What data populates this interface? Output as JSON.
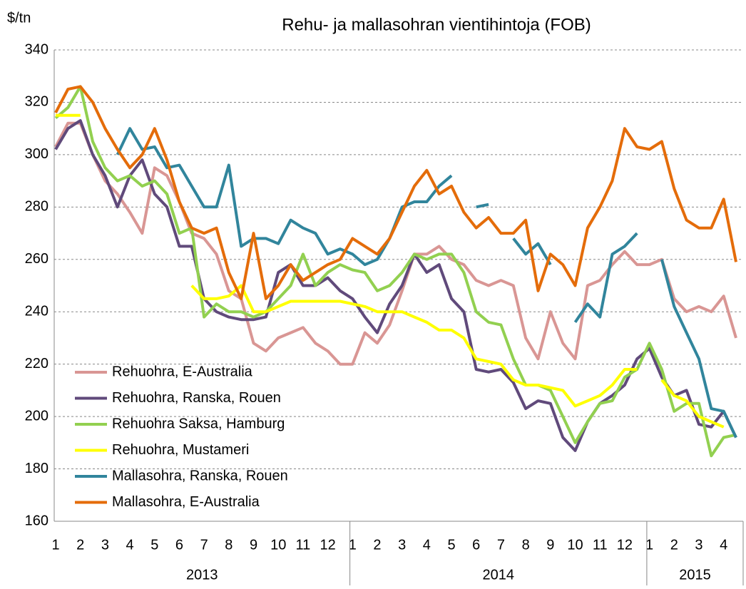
{
  "chart_data": {
    "type": "line",
    "title": "Rehu- ja mallasohran vientihintoja (FOB)",
    "y_axis_label": "$/tn",
    "categories": [
      "1",
      null,
      "2",
      null,
      "3",
      null,
      "4",
      null,
      "5",
      null,
      "6",
      null,
      "7",
      null,
      "8",
      null,
      "9",
      null,
      "10",
      null,
      "11",
      null,
      "12",
      null,
      "1",
      null,
      "2",
      null,
      "3",
      null,
      "4",
      null,
      "5",
      null,
      "6",
      null,
      "7",
      null,
      "8",
      null,
      "9",
      null,
      "10",
      null,
      "11",
      null,
      "12",
      null,
      "1",
      null,
      "2",
      null,
      "3",
      null,
      "4",
      null
    ],
    "years": [
      "2013",
      "2014",
      "2015"
    ],
    "ylim": [
      160,
      340
    ],
    "yticks": [
      160,
      180,
      200,
      220,
      240,
      260,
      280,
      300,
      320,
      340
    ],
    "grid": true,
    "series": [
      {
        "name": "Rehuohra, E-Australia",
        "color": "#d99694",
        "values": [
          303,
          312,
          312,
          300,
          290,
          285,
          278,
          270,
          295,
          292,
          282,
          270,
          268,
          262,
          248,
          245,
          228,
          225,
          230,
          232,
          234,
          228,
          225,
          220,
          220,
          232,
          228,
          235,
          248,
          262,
          262,
          265,
          260,
          258,
          252,
          250,
          252,
          250,
          230,
          222,
          240,
          228,
          222,
          250,
          252,
          258,
          263,
          258,
          258,
          260,
          245,
          240,
          242,
          240,
          246,
          230
        ]
      },
      {
        "name": "Rehuohra, Ranska, Rouen",
        "color": "#604a7b",
        "values": [
          302,
          310,
          313,
          300,
          292,
          280,
          292,
          298,
          285,
          280,
          265,
          265,
          245,
          240,
          238,
          237,
          237,
          238,
          255,
          258,
          250,
          250,
          253,
          248,
          245,
          238,
          232,
          243,
          250,
          262,
          255,
          258,
          245,
          240,
          218,
          217,
          218,
          213,
          203,
          206,
          205,
          192,
          187,
          198,
          205,
          208,
          212,
          222,
          226,
          215,
          208,
          210,
          197,
          196,
          202,
          192
        ]
      },
      {
        "name": "Rehuohra Saksa, Hamburg",
        "color": "#92d050",
        "values": [
          314,
          318,
          326,
          305,
          295,
          290,
          292,
          288,
          290,
          285,
          270,
          272,
          238,
          243,
          240,
          240,
          238,
          240,
          245,
          250,
          262,
          250,
          255,
          258,
          256,
          255,
          248,
          250,
          255,
          262,
          260,
          262,
          262,
          255,
          240,
          236,
          235,
          222,
          212,
          212,
          210,
          200,
          190,
          198,
          205,
          206,
          215,
          218,
          228,
          218,
          202,
          205,
          205,
          185,
          192,
          193
        ]
      },
      {
        "name": "Rehuohra, Mustameri",
        "color": "#ffff00",
        "values": [
          315,
          315,
          315,
          null,
          null,
          null,
          null,
          null,
          null,
          null,
          null,
          250,
          245,
          245,
          246,
          250,
          240,
          240,
          242,
          244,
          244,
          244,
          244,
          244,
          243,
          242,
          240,
          240,
          240,
          238,
          236,
          233,
          233,
          230,
          222,
          221,
          220,
          214,
          212,
          212,
          211,
          210,
          204,
          206,
          208,
          212,
          218,
          218,
          null,
          214,
          208,
          206,
          200,
          198,
          196,
          null
        ]
      },
      {
        "name": "Mallasohra, Ranska, Rouen",
        "color": "#31859c",
        "values": [
          null,
          null,
          null,
          null,
          null,
          300,
          310,
          302,
          303,
          295,
          296,
          288,
          280,
          280,
          296,
          265,
          268,
          268,
          266,
          275,
          272,
          270,
          262,
          264,
          262,
          258,
          260,
          268,
          280,
          282,
          282,
          288,
          292,
          null,
          280,
          281,
          null,
          268,
          262,
          266,
          258,
          null,
          236,
          243,
          238,
          262,
          265,
          270,
          null,
          260,
          242,
          232,
          222,
          203,
          202,
          192
        ]
      },
      {
        "name": "Mallasohra, E-Australia",
        "color": "#e46c0a",
        "values": [
          316,
          325,
          326,
          320,
          310,
          302,
          295,
          300,
          310,
          298,
          282,
          272,
          270,
          272,
          255,
          245,
          270,
          245,
          250,
          258,
          252,
          255,
          258,
          260,
          268,
          265,
          262,
          268,
          278,
          288,
          294,
          285,
          288,
          278,
          272,
          276,
          270,
          270,
          275,
          248,
          262,
          258,
          250,
          272,
          280,
          290,
          310,
          303,
          302,
          305,
          287,
          275,
          272,
          272,
          283,
          259
        ]
      }
    ]
  }
}
